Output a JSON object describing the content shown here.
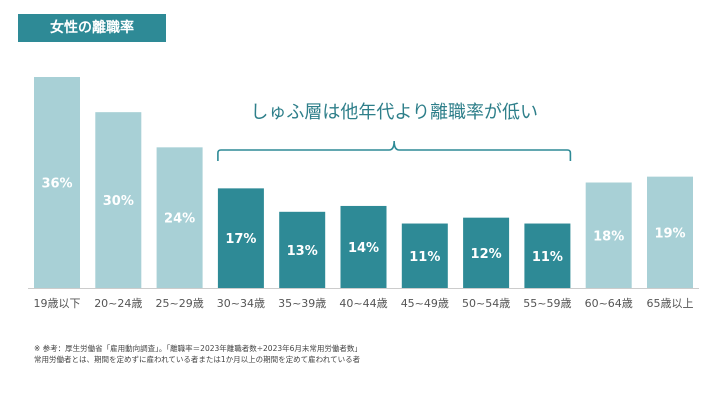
{
  "header": {
    "title": "女性の離職率"
  },
  "chart_data": {
    "type": "bar",
    "title": "女性の離職率",
    "categories": [
      "19歳以下",
      "20~24歳",
      "25~29歳",
      "30~34歳",
      "35~39歳",
      "40~44歳",
      "45~49歳",
      "50~54歳",
      "55~59歳",
      "60~64歳",
      "65歳以上"
    ],
    "values": [
      36,
      30,
      24,
      17,
      13,
      14,
      11,
      12,
      11,
      18,
      19
    ],
    "value_labels": [
      "36%",
      "30%",
      "24%",
      "17%",
      "13%",
      "14%",
      "11%",
      "12%",
      "11%",
      "18%",
      "19%"
    ],
    "highlight": [
      false,
      false,
      false,
      true,
      true,
      true,
      true,
      true,
      true,
      false,
      false
    ],
    "annotation": "しゅふ層は他年代より離職率が低い",
    "ylim": [
      0,
      36
    ],
    "grid": false,
    "colors": {
      "normal": "#a8d0d6",
      "highlight": "#2e8a96",
      "label": "#ffffff",
      "axis": "#cccccc",
      "annotation": "#2e7f8a",
      "tick": "#555555"
    }
  },
  "notes": {
    "line1": "※ 参考：厚生労働省「雇用動向調査」。「離職率＝2023年離職者数÷2023年6月末常用労働者数」",
    "line2": "常用労働者とは、期間を定めずに雇われている者または1か月以上の期間を定めて雇われている者"
  }
}
